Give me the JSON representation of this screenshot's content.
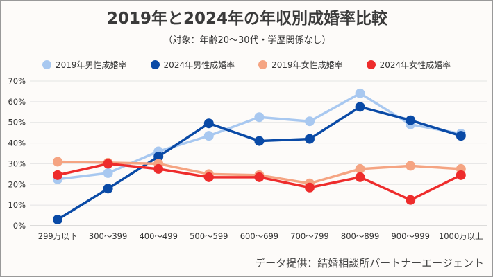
{
  "chart_data": {
    "type": "line",
    "title": "2019年と2024年の年収別成婚率比較",
    "subtitle": "（対象：年齢20〜30代・学歴関係なし）",
    "categories": [
      "299万以下",
      "300〜399",
      "400〜499",
      "500〜599",
      "600〜699",
      "700〜799",
      "800〜899",
      "900〜999",
      "1000万以上"
    ],
    "yticks": [
      "0%",
      "10%",
      "20%",
      "30%",
      "40%",
      "50%",
      "60%",
      "70%"
    ],
    "ylim": [
      0,
      70
    ],
    "grid": true,
    "legend_position": "top",
    "series": [
      {
        "name": "2019年男性成婚率",
        "color": "#a8c8f0",
        "values": [
          22.5,
          25.5,
          36,
          43.5,
          52.5,
          50.5,
          64,
          49,
          44.5
        ]
      },
      {
        "name": "2024年男性成婚率",
        "color": "#0a4aa6",
        "values": [
          3,
          18,
          33.5,
          49.5,
          41,
          42,
          57.5,
          51,
          43.5
        ]
      },
      {
        "name": "2019年女性成婚率",
        "color": "#f5a482",
        "values": [
          31,
          30.5,
          30,
          25,
          24.5,
          20.5,
          27.5,
          29,
          27.5
        ]
      },
      {
        "name": "2024年女性成婚率",
        "color": "#ee2c2c",
        "values": [
          24.5,
          30,
          27.5,
          23.5,
          23.5,
          18.5,
          23.5,
          12.5,
          24.5
        ]
      }
    ],
    "credit": "データ提供：結婚相談所パートナーエージェント"
  }
}
